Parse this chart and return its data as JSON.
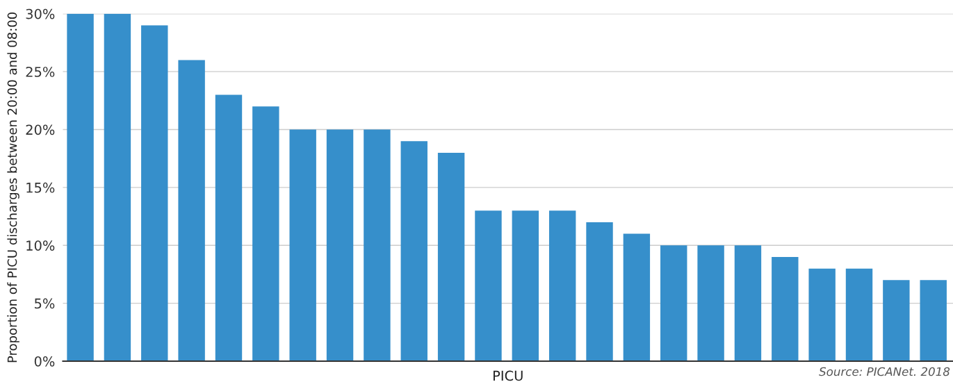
{
  "chart_data": {
    "type": "bar",
    "ylabel": "Proportion of PICU discharges between 20:00 and 08:00",
    "xlabel": "PICU",
    "categories": [
      null,
      null,
      null,
      null,
      null,
      null,
      null,
      null,
      null,
      null,
      null,
      null,
      null,
      null,
      null,
      null,
      null,
      null,
      null,
      null,
      null,
      null,
      null,
      null
    ],
    "values": [
      30,
      30,
      29,
      26,
      23,
      22,
      20,
      20,
      20,
      19,
      18,
      13,
      13,
      13,
      12,
      11,
      10,
      10,
      10,
      9,
      8,
      8,
      7,
      7
    ],
    "color": "#368fcb",
    "ylim": [
      0,
      30
    ],
    "yticks": [
      {
        "value": 0,
        "label": "0%"
      },
      {
        "value": 5,
        "label": "5%"
      },
      {
        "value": 10,
        "label": "10%"
      },
      {
        "value": 15,
        "label": "15%"
      },
      {
        "value": 20,
        "label": "20%"
      },
      {
        "value": 25,
        "label": "25%"
      },
      {
        "value": 30,
        "label": "30%"
      }
    ],
    "grid": "y",
    "annotations": [
      "Source: PICANet. 2018"
    ]
  }
}
